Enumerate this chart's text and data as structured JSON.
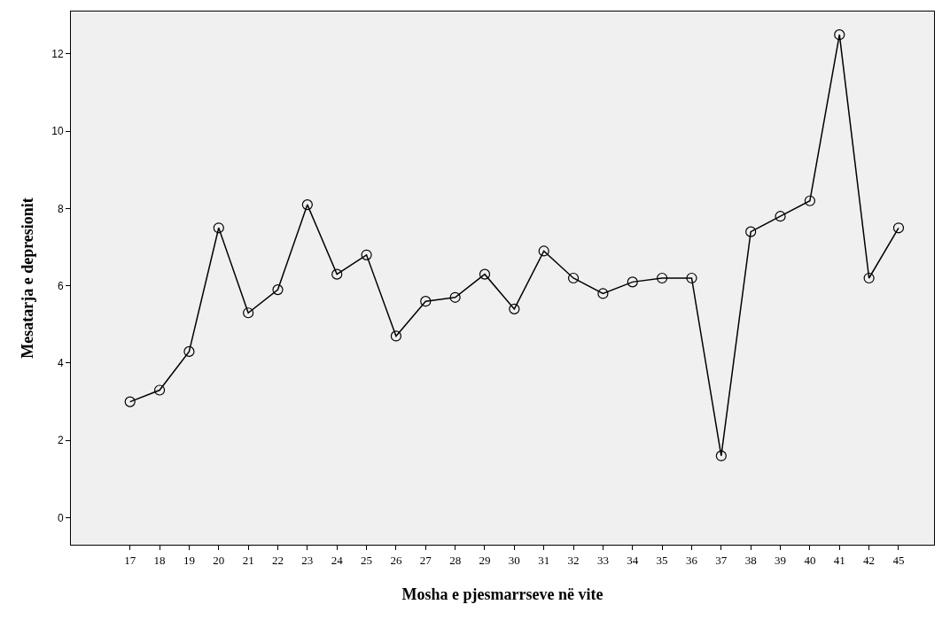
{
  "chart_data": {
    "type": "line",
    "xlabel": "Mosha e pjesmarrseve në vite",
    "ylabel": "Mesatarja e depresionit",
    "categories": [
      "17",
      "18",
      "19",
      "20",
      "21",
      "22",
      "23",
      "24",
      "25",
      "26",
      "27",
      "28",
      "29",
      "30",
      "31",
      "32",
      "33",
      "34",
      "35",
      "36",
      "37",
      "38",
      "39",
      "40",
      "41",
      "42",
      "45"
    ],
    "series": [
      {
        "color": "#000000",
        "values": [
          3.0,
          3.3,
          4.3,
          7.5,
          5.3,
          5.9,
          8.1,
          6.3,
          6.8,
          4.7,
          5.6,
          5.7,
          6.3,
          5.4,
          6.9,
          6.2,
          5.8,
          6.1,
          6.2,
          6.2,
          1.6,
          7.4,
          7.8,
          8.2,
          12.5,
          6.2,
          7.5
        ]
      }
    ],
    "ylim": [
      -0.7,
      13.1
    ],
    "yticks": [
      0,
      2,
      4,
      6,
      8,
      10,
      12
    ],
    "grid": false,
    "marker": "circle",
    "line_style": "solid"
  }
}
